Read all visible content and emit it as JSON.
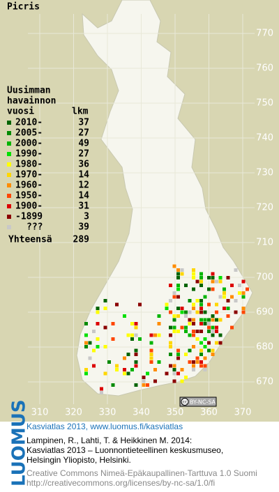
{
  "title": "Picris",
  "legend": {
    "header": [
      "Uusimman",
      "havainnon",
      "vuosi"
    ],
    "count_header": "lkm",
    "rows": [
      {
        "label": "2010-",
        "count": 37,
        "color": "#006400"
      },
      {
        "label": "2005-",
        "count": 27,
        "color": "#008a00"
      },
      {
        "label": "2000-",
        "count": 49,
        "color": "#00b400"
      },
      {
        "label": "1990-",
        "count": 27,
        "color": "#00e000"
      },
      {
        "label": "1980-",
        "count": 36,
        "color": "#ffff00"
      },
      {
        "label": "1970-",
        "count": 14,
        "color": "#ffd700"
      },
      {
        "label": "1960-",
        "count": 12,
        "color": "#ff8c00"
      },
      {
        "label": "1950-",
        "count": 14,
        "color": "#ff4500"
      },
      {
        "label": "1900-",
        "count": 31,
        "color": "#dc0000"
      },
      {
        "label": "-1899",
        "count": 3,
        "color": "#8b0000"
      },
      {
        "label": "???",
        "count": 39,
        "color": "#c8c8c8"
      }
    ],
    "total_label": "Yhteensä",
    "total": 289
  },
  "grid": {
    "y_labels": [
      770,
      760,
      750,
      740,
      730,
      720,
      710,
      700,
      690,
      680,
      670
    ],
    "x_labels": [
      310,
      320,
      330,
      340,
      350,
      360,
      370
    ]
  },
  "badge": {
    "cc": "cc",
    "text": "BY-NC-SA"
  },
  "logo": "LUOMUS",
  "credits": {
    "heading": "Kasviatlas 2013, www.luomus.fi/kasviatlas",
    "citation": [
      "Lampinen, R., Lahti, T. & Heikkinen M. 2014:",
      "Kasviatlas 2013 – Luonnontieteellinen keskusmuseo,",
      "Helsingin Yliopisto, Helsinki."
    ],
    "license": [
      "Creative Commons Nimeä-Epäkaupallinen-Tarttuva 1.0 Suomi",
      "http://creativecommons.org/licenses/by-nc-sa/1.0/fi"
    ]
  }
}
